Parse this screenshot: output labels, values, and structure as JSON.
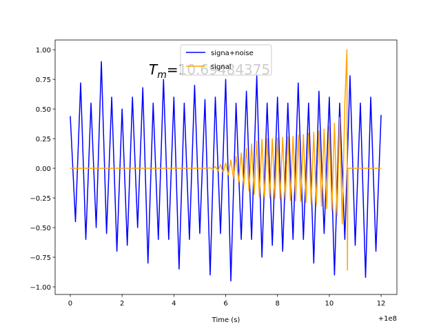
{
  "chart_data": {
    "type": "line",
    "xlabel": "Time (s)",
    "x_offset_label": "+1e8",
    "annotation": {
      "symbol": "T",
      "subscript": "m",
      "text": "=10.69484375"
    },
    "xlim": [
      99999999.415,
      100000012.61
    ],
    "ylim": [
      -1.064,
      1.082
    ],
    "xticks": [
      {
        "value": 100000000,
        "label": "0"
      },
      {
        "value": 100000002,
        "label": "2"
      },
      {
        "value": 100000004,
        "label": "4"
      },
      {
        "value": 100000006,
        "label": "6"
      },
      {
        "value": 100000008,
        "label": "8"
      },
      {
        "value": 100000010,
        "label": "10"
      },
      {
        "value": 100000012,
        "label": "12"
      }
    ],
    "yticks": [
      {
        "value": -1,
        "label": "−1.00"
      },
      {
        "value": -0.75,
        "label": "−0.75"
      },
      {
        "value": -0.5,
        "label": "−0.50"
      },
      {
        "value": -0.25,
        "label": "−0.25"
      },
      {
        "value": 0,
        "label": "0.00"
      },
      {
        "value": 0.25,
        "label": "0.25"
      },
      {
        "value": 0.5,
        "label": "0.50"
      },
      {
        "value": 0.75,
        "label": "0.75"
      },
      {
        "value": 1,
        "label": "1.00"
      }
    ],
    "legend": "upper center",
    "series": [
      {
        "name": "signa+noise",
        "color": "#0000ff",
        "x": [
          100000000.0,
          100000000.2,
          100000000.4,
          100000000.6,
          100000000.8,
          100000001.0,
          100000001.2,
          100000001.4,
          100000001.6,
          100000001.8,
          100000002.0,
          100000002.2,
          100000002.4,
          100000002.6,
          100000002.8,
          100000003.0,
          100000003.2,
          100000003.4,
          100000003.6,
          100000003.8,
          100000004.0,
          100000004.2,
          100000004.4,
          100000004.6,
          100000004.8,
          100000005.0,
          100000005.2,
          100000005.4,
          100000005.6,
          100000005.8,
          100000006.0,
          100000006.2,
          100000006.4,
          100000006.6,
          100000006.8,
          100000007.0,
          100000007.2,
          100000007.4,
          100000007.6,
          100000007.8,
          100000008.0,
          100000008.2,
          100000008.4,
          100000008.6,
          100000008.8,
          100000009.0,
          100000009.2,
          100000009.4,
          100000009.6,
          100000009.8,
          100000010.0,
          100000010.2,
          100000010.4,
          100000010.6,
          100000010.8,
          100000011.0,
          100000011.2,
          100000011.4,
          100000011.6,
          100000011.8,
          100000012.0
        ],
        "values": [
          0.44,
          -0.45,
          0.72,
          -0.6,
          0.55,
          -0.5,
          0.9,
          -0.55,
          0.6,
          -0.7,
          0.5,
          -0.65,
          0.6,
          -0.5,
          0.68,
          -0.8,
          0.55,
          -0.6,
          0.75,
          -0.6,
          0.6,
          -0.85,
          0.55,
          -0.6,
          0.7,
          -0.55,
          0.58,
          -0.9,
          0.6,
          -0.55,
          0.75,
          -0.95,
          0.55,
          -0.6,
          0.65,
          -0.6,
          0.78,
          -0.75,
          0.55,
          -0.65,
          0.6,
          -0.7,
          0.55,
          -0.6,
          0.72,
          -0.6,
          0.55,
          -0.8,
          0.65,
          -0.55,
          0.6,
          -0.9,
          0.55,
          -0.6,
          0.78,
          -0.65,
          0.55,
          -0.92,
          0.6,
          -0.7,
          0.45
        ]
      },
      {
        "name": "signal",
        "color": "#ffa500",
        "x": [
          100000000.0,
          100000005.3,
          100000005.4,
          100000005.5,
          100000005.6,
          100000005.7,
          100000005.8,
          100000005.9,
          100000006.0,
          100000006.1,
          100000006.2,
          100000006.3,
          100000006.4,
          100000006.5,
          100000006.6,
          100000006.7,
          100000006.8,
          100000006.9,
          100000007.0,
          100000007.1,
          100000007.2,
          100000007.3,
          100000007.4,
          100000007.5,
          100000007.6,
          100000007.7,
          100000007.8,
          100000007.9,
          100000008.0,
          100000008.1,
          100000008.2,
          100000008.3,
          100000008.4,
          100000008.5,
          100000008.6,
          100000008.7,
          100000008.8,
          100000008.9,
          100000009.0,
          100000009.1,
          100000009.2,
          100000009.3,
          100000009.4,
          100000009.5,
          100000009.6,
          100000009.7,
          100000009.8,
          100000009.9,
          100000010.0,
          100000010.1,
          100000010.2,
          100000010.3,
          100000010.4,
          100000010.5,
          100000010.6,
          100000010.68,
          100000010.7,
          100000010.72,
          100000012.0
        ],
        "values": [
          0,
          0,
          0.005,
          -0.01,
          0.015,
          -0.02,
          0.03,
          -0.035,
          0.045,
          -0.055,
          0.07,
          -0.085,
          0.1,
          -0.115,
          0.13,
          -0.15,
          0.17,
          -0.19,
          0.205,
          -0.22,
          0.23,
          -0.24,
          0.245,
          -0.245,
          0.25,
          -0.25,
          0.25,
          -0.255,
          0.255,
          -0.26,
          0.26,
          -0.265,
          0.265,
          -0.27,
          0.27,
          -0.275,
          0.28,
          -0.28,
          0.285,
          -0.29,
          0.295,
          -0.3,
          0.305,
          -0.31,
          0.315,
          -0.32,
          0.33,
          -0.34,
          0.35,
          -0.36,
          0.38,
          -0.4,
          0.43,
          -0.47,
          0.55,
          1.0,
          -0.86,
          0,
          0
        ]
      }
    ]
  }
}
